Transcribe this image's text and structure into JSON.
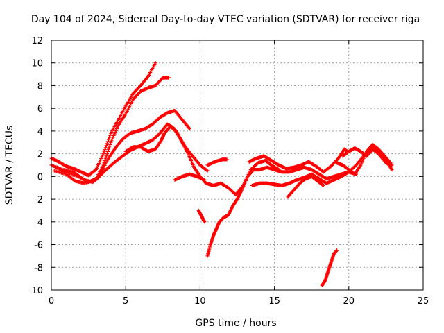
{
  "chart_data": {
    "type": "scatter",
    "title": "Day 104 of 2024, Sidereal Day-to-day VTEC variation (SDTVAR) for receiver riga",
    "xlabel": "GPS time / hours",
    "ylabel": "SDTVAR / TECUs",
    "xlim": [
      0,
      25
    ],
    "ylim": [
      -10,
      12
    ],
    "xticks": [
      0,
      5,
      10,
      15,
      20,
      25
    ],
    "yticks": [
      -10,
      -8,
      -6,
      -4,
      -2,
      0,
      2,
      4,
      6,
      8,
      10,
      12
    ],
    "grid": true,
    "marker": "+",
    "color": "#ff0000",
    "series": [
      {
        "values": [
          [
            0,
            1.6
          ],
          [
            0.5,
            1.3
          ],
          [
            1.0,
            0.9
          ],
          [
            1.5,
            0.7
          ],
          [
            2.0,
            0.4
          ],
          [
            2.5,
            0.1
          ],
          [
            3.0,
            0.6
          ],
          [
            3.5,
            2.0
          ],
          [
            4.0,
            3.8
          ],
          [
            4.5,
            5.0
          ],
          [
            5.0,
            6.2
          ],
          [
            5.5,
            7.3
          ],
          [
            6.0,
            8.0
          ],
          [
            6.5,
            8.8
          ],
          [
            7.0,
            10.0
          ]
        ]
      },
      {
        "values": [
          [
            0.3,
            0.8
          ],
          [
            1.0,
            0.4
          ],
          [
            1.8,
            0.0
          ],
          [
            2.5,
            -0.5
          ],
          [
            3.0,
            -0.2
          ],
          [
            3.5,
            1.0
          ],
          [
            4.0,
            3.0
          ],
          [
            4.5,
            4.5
          ],
          [
            5.0,
            5.5
          ],
          [
            5.5,
            6.8
          ],
          [
            6.0,
            7.5
          ],
          [
            6.5,
            7.8
          ],
          [
            7.0,
            8.0
          ],
          [
            7.5,
            8.7
          ],
          [
            7.9,
            8.7
          ]
        ]
      },
      {
        "values": [
          [
            0,
            1.0
          ],
          [
            0.8,
            0.6
          ],
          [
            1.5,
            0.4
          ],
          [
            2.2,
            -0.3
          ],
          [
            2.8,
            -0.5
          ],
          [
            3.3,
            0.2
          ],
          [
            3.8,
            1.5
          ],
          [
            4.3,
            2.5
          ],
          [
            4.8,
            3.3
          ],
          [
            5.3,
            3.8
          ],
          [
            5.8,
            4.0
          ],
          [
            6.3,
            4.2
          ],
          [
            6.8,
            4.6
          ],
          [
            7.3,
            5.2
          ],
          [
            7.8,
            5.6
          ],
          [
            8.3,
            5.8
          ],
          [
            8.8,
            5.0
          ],
          [
            9.3,
            4.2
          ]
        ]
      },
      {
        "values": [
          [
            0.2,
            0.5
          ],
          [
            1.0,
            0.2
          ],
          [
            1.6,
            -0.4
          ],
          [
            2.2,
            -0.6
          ],
          [
            3.0,
            -0.3
          ],
          [
            3.6,
            0.5
          ],
          [
            4.2,
            1.2
          ],
          [
            4.8,
            1.8
          ],
          [
            5.3,
            2.3
          ],
          [
            5.8,
            2.6
          ],
          [
            6.3,
            2.9
          ],
          [
            6.8,
            3.2
          ],
          [
            7.3,
            3.8
          ],
          [
            7.8,
            4.6
          ],
          [
            8.2,
            4.3
          ],
          [
            8.6,
            3.5
          ],
          [
            9.0,
            2.6
          ],
          [
            9.5,
            1.8
          ],
          [
            10.0,
            1.0
          ],
          [
            10.5,
            0.5
          ]
        ]
      },
      {
        "values": [
          [
            5.0,
            2.2
          ],
          [
            5.5,
            2.6
          ],
          [
            6.0,
            2.6
          ],
          [
            6.5,
            2.2
          ],
          [
            7.0,
            2.4
          ],
          [
            7.4,
            3.2
          ],
          [
            7.6,
            3.8
          ],
          [
            8.0,
            4.4
          ],
          [
            8.4,
            4.0
          ],
          [
            8.8,
            3.0
          ],
          [
            9.2,
            2.0
          ],
          [
            9.6,
            0.8
          ],
          [
            10.0,
            0.0
          ],
          [
            10.4,
            -0.6
          ],
          [
            10.9,
            -0.8
          ],
          [
            11.4,
            -0.6
          ],
          [
            11.9,
            -1.0
          ],
          [
            12.4,
            -1.6
          ],
          [
            12.9,
            -0.8
          ],
          [
            13.4,
            0.6
          ],
          [
            13.9,
            1.2
          ],
          [
            14.4,
            1.4
          ],
          [
            14.8,
            1.0
          ],
          [
            15.3,
            0.6
          ]
        ]
      },
      {
        "values": [
          [
            8.3,
            -0.3
          ],
          [
            8.8,
            0.0
          ],
          [
            9.3,
            0.2
          ],
          [
            9.8,
            0.0
          ],
          [
            10.3,
            -0.3
          ]
        ]
      },
      {
        "values": [
          [
            10.5,
            1.0
          ],
          [
            11.0,
            1.3
          ],
          [
            11.5,
            1.5
          ],
          [
            11.8,
            1.5
          ]
        ]
      },
      {
        "values": [
          [
            9.9,
            -3.0
          ],
          [
            10.1,
            -3.5
          ],
          [
            10.3,
            -4.0
          ]
        ]
      },
      {
        "values": [
          [
            10.5,
            -7.0
          ],
          [
            10.7,
            -6.0
          ],
          [
            10.9,
            -5.2
          ],
          [
            11.1,
            -4.6
          ],
          [
            11.3,
            -4.0
          ],
          [
            11.6,
            -3.6
          ],
          [
            11.9,
            -3.4
          ],
          [
            12.2,
            -2.6
          ],
          [
            12.5,
            -2.0
          ],
          [
            12.8,
            -1.2
          ],
          [
            13.2,
            0.0
          ],
          [
            13.6,
            0.6
          ],
          [
            14.0,
            0.6
          ],
          [
            14.5,
            0.8
          ],
          [
            15.0,
            0.6
          ],
          [
            15.5,
            0.4
          ],
          [
            16.0,
            0.4
          ],
          [
            16.5,
            0.6
          ],
          [
            17.0,
            0.8
          ],
          [
            17.5,
            0.6
          ],
          [
            18.0,
            0.2
          ],
          [
            18.5,
            -0.2
          ],
          [
            19.0,
            0.0
          ],
          [
            19.5,
            0.2
          ],
          [
            20.0,
            0.4
          ],
          [
            20.5,
            0.2
          ]
        ]
      },
      {
        "values": [
          [
            13.3,
            1.3
          ],
          [
            13.8,
            1.6
          ],
          [
            14.3,
            1.8
          ],
          [
            14.8,
            1.4
          ],
          [
            15.3,
            1.0
          ],
          [
            15.8,
            0.7
          ],
          [
            16.3,
            0.8
          ],
          [
            16.8,
            1.0
          ],
          [
            17.3,
            1.3
          ],
          [
            17.8,
            0.9
          ],
          [
            18.3,
            0.4
          ],
          [
            18.8,
            0.9
          ],
          [
            19.3,
            1.6
          ],
          [
            19.7,
            2.4
          ],
          [
            19.9,
            2.2
          ]
        ]
      },
      {
        "values": [
          [
            13.5,
            -0.8
          ],
          [
            14.0,
            -0.6
          ],
          [
            14.5,
            -0.6
          ],
          [
            15.0,
            -0.7
          ],
          [
            15.5,
            -0.8
          ],
          [
            16.0,
            -0.6
          ],
          [
            16.5,
            -0.3
          ],
          [
            17.0,
            -0.1
          ],
          [
            17.5,
            0.2
          ],
          [
            18.0,
            -0.2
          ],
          [
            18.5,
            -0.6
          ],
          [
            19.0,
            -0.3
          ],
          [
            19.5,
            0.0
          ],
          [
            20.0,
            0.4
          ],
          [
            20.5,
            1.0
          ],
          [
            21.0,
            1.8
          ],
          [
            21.5,
            2.6
          ],
          [
            22.0,
            2.2
          ],
          [
            22.5,
            1.4
          ],
          [
            22.9,
            0.6
          ]
        ]
      },
      {
        "values": [
          [
            15.9,
            -1.8
          ],
          [
            16.3,
            -1.2
          ],
          [
            16.7,
            -0.6
          ],
          [
            17.1,
            -0.2
          ],
          [
            17.5,
            0.0
          ],
          [
            17.9,
            -0.4
          ],
          [
            18.3,
            -0.8
          ]
        ]
      },
      {
        "values": [
          [
            19.6,
            1.8
          ],
          [
            20.0,
            2.2
          ],
          [
            20.4,
            2.5
          ],
          [
            20.8,
            2.2
          ],
          [
            21.2,
            1.8
          ],
          [
            21.6,
            2.4
          ],
          [
            22.0,
            2.0
          ],
          [
            22.5,
            1.2
          ],
          [
            22.9,
            1.0
          ]
        ]
      },
      {
        "values": [
          [
            18.2,
            -9.6
          ],
          [
            18.4,
            -9.2
          ],
          [
            18.6,
            -8.4
          ],
          [
            18.8,
            -7.6
          ],
          [
            19.0,
            -6.8
          ],
          [
            19.2,
            -6.5
          ]
        ]
      },
      {
        "values": [
          [
            19.2,
            1.2
          ],
          [
            19.6,
            1.0
          ],
          [
            20.0,
            0.6
          ],
          [
            20.4,
            0.2
          ],
          [
            20.8,
            1.0
          ],
          [
            21.2,
            2.2
          ],
          [
            21.6,
            2.8
          ],
          [
            22.0,
            2.4
          ],
          [
            22.4,
            1.8
          ],
          [
            22.8,
            1.2
          ]
        ]
      }
    ]
  }
}
